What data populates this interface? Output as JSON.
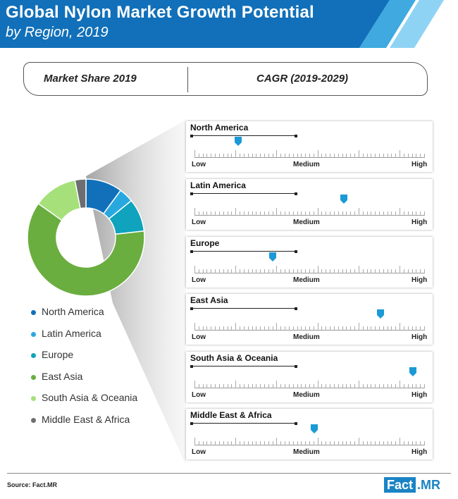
{
  "header": {
    "title": "Global Nylon Market Growth Potential",
    "subtitle": "by Region, 2019",
    "colors": {
      "primary": "#1170b9",
      "accent": "#3fa9e0",
      "light": "#8fd3f4"
    }
  },
  "tabs": {
    "left": "Market Share 2019",
    "right": "CAGR (2019-2029)"
  },
  "chart_data": [
    {
      "type": "pie",
      "variant": "donut",
      "title": "Market Share 2019",
      "categories": [
        "North America",
        "Latin America",
        "Europe",
        "East Asia",
        "South Asia & Oceania",
        "Middle East & Africa"
      ],
      "values": [
        10,
        4,
        9,
        61,
        12,
        3
      ],
      "unit": "%",
      "colors": [
        "#1170b9",
        "#29a8e0",
        "#0fa3bd",
        "#6aae3f",
        "#a6e07b",
        "#6d6e71"
      ],
      "legend_position": "bottom-left"
    },
    {
      "type": "scatter",
      "title": "CAGR (2019-2029)",
      "scale_labels": [
        "Low",
        "Medium",
        "High"
      ],
      "scale_range": [
        0,
        1
      ],
      "categories": [
        "North America",
        "Latin America",
        "Europe",
        "East Asia",
        "South Asia & Oceania",
        "Middle East & Africa"
      ],
      "values": [
        0.19,
        0.65,
        0.34,
        0.81,
        0.95,
        0.52
      ],
      "value_note": "position on Low–High scale (0 = Low, 1 = High)"
    }
  ],
  "source": "Source: Fact.MR",
  "brand": {
    "part1": "Fact",
    "part2": ".MR"
  }
}
